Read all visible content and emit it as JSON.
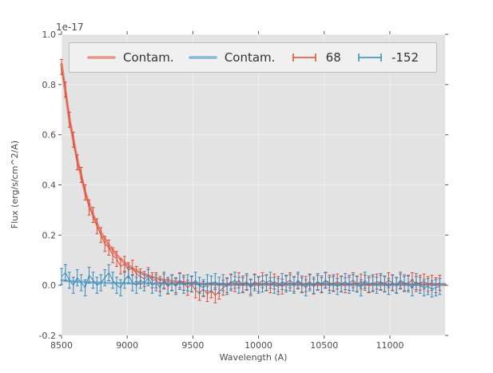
{
  "figure": {
    "background": "#ffffff",
    "axes_background": "#e3e3e3",
    "tick_color": "#555555",
    "label_color": "#4d4d4d",
    "offset_text": "1e-17"
  },
  "legend": {
    "entries": [
      {
        "label": "Contam.",
        "type": "line",
        "color": "rgba(226,74,51,0.55)"
      },
      {
        "label": "Contam.",
        "type": "line",
        "color": "rgba(52,138,189,0.55)"
      },
      {
        "label": "68",
        "type": "errorbar",
        "color": "#e24a33"
      },
      {
        "label": "-152",
        "type": "errorbar",
        "color": "#348abd"
      }
    ]
  },
  "chart_data": {
    "type": "line",
    "title": "",
    "xlabel": "Wavelength (A)",
    "ylabel": "Flux (erg/s/cm^2/A)",
    "y_scale_factor": "1e-17",
    "xlim": [
      8500,
      11420
    ],
    "ylim": [
      -0.2,
      1.0
    ],
    "xticks": [
      8500,
      9000,
      9500,
      10000,
      10500,
      11000
    ],
    "yticks": [
      -0.2,
      0.0,
      0.2,
      0.4,
      0.6,
      0.8,
      1.0
    ],
    "grid": true,
    "legend_position": "upper center",
    "series": [
      {
        "name": "Contam.",
        "style": "line",
        "color": "rgba(226,74,51,0.55)",
        "width": 3.5,
        "x": [
          8500,
          8560,
          8620,
          8680,
          8740,
          8800,
          8860,
          8920,
          8980,
          9040,
          9100,
          9160,
          9220,
          9280,
          9340,
          9400,
          9460,
          9520,
          9580,
          9640,
          9700,
          9800,
          10000,
          10200,
          10400,
          10600,
          10800,
          11000,
          11200,
          11420
        ],
        "y": [
          0.88,
          0.66,
          0.5,
          0.37,
          0.28,
          0.21,
          0.16,
          0.12,
          0.09,
          0.067,
          0.05,
          0.038,
          0.028,
          0.021,
          0.016,
          0.012,
          0.009,
          0.007,
          0.005,
          0.004,
          0.003,
          0.002,
          0.002,
          0.002,
          0.002,
          0.002,
          0.002,
          0.002,
          0.002,
          0.002
        ]
      },
      {
        "name": "Contam.",
        "style": "line",
        "color": "rgba(52,138,189,0.55)",
        "width": 3,
        "x": [
          8500,
          8600,
          8700,
          8800,
          9000,
          9500,
          10000,
          10500,
          11000,
          11420
        ],
        "y": [
          0.02,
          0.015,
          0.012,
          0.01,
          0.008,
          0.006,
          0.005,
          0.005,
          0.004,
          0.004
        ]
      },
      {
        "name": "68",
        "style": "errorbar",
        "color": "#e24a33",
        "x_start": 8500,
        "x_step": 30,
        "yerr": 0.03,
        "y": [
          0.87,
          0.78,
          0.66,
          0.58,
          0.49,
          0.44,
          0.37,
          0.31,
          0.28,
          0.235,
          0.2,
          0.165,
          0.15,
          0.12,
          0.105,
          0.075,
          0.085,
          0.06,
          0.07,
          0.045,
          0.035,
          0.025,
          0.04,
          0.02,
          0.02,
          0.005,
          0.015,
          -0.005,
          0.01,
          0.0,
          0.02,
          0.01,
          -0.01,
          0.005,
          -0.02,
          -0.03,
          -0.015,
          -0.035,
          -0.02,
          -0.04,
          -0.025,
          -0.01,
          0.0,
          0.015,
          0.005,
          0.02,
          0.0,
          0.01,
          -0.005,
          0.015,
          0.005,
          0.02,
          0.01,
          0.0,
          0.015,
          0.005,
          -0.005,
          0.01,
          0.02,
          0.005,
          0.015,
          0.0,
          0.005,
          0.015,
          -0.005,
          0.01,
          0.0,
          0.02,
          0.01,
          0.005,
          0.015,
          0.005,
          0.0,
          0.01,
          0.02,
          0.005,
          0.015,
          0.01,
          0.0,
          0.005,
          0.015,
          0.01,
          0.005,
          0.02,
          0.01,
          0.0,
          0.015,
          0.005,
          0.01,
          0.02,
          0.005,
          0.01,
          0.015,
          0.005,
          0.01,
          0.0,
          0.01
        ]
      },
      {
        "name": "-152",
        "style": "errorbar",
        "color": "#348abd",
        "x_start": 8500,
        "x_step": 30,
        "yerr": 0.032,
        "y": [
          0.035,
          0.05,
          0.02,
          0.0,
          0.03,
          0.01,
          -0.01,
          0.04,
          0.02,
          0.0,
          0.01,
          0.03,
          0.05,
          0.02,
          0.0,
          -0.01,
          0.02,
          0.04,
          0.01,
          0.0,
          0.02,
          0.01,
          0.03,
          0.0,
          0.01,
          -0.01,
          0.02,
          0.0,
          0.01,
          -0.005,
          0.015,
          0.0,
          0.01,
          0.005,
          0.02,
          0.0,
          -0.01,
          0.01,
          0.005,
          0.015,
          0.0,
          0.01,
          -0.005,
          0.01,
          0.02,
          0.0,
          0.005,
          0.015,
          -0.01,
          0.01,
          0.0,
          0.005,
          0.01,
          0.02,
          0.0,
          -0.005,
          0.015,
          0.005,
          0.01,
          0.0,
          0.02,
          0.005,
          -0.01,
          0.01,
          0.0,
          0.015,
          0.005,
          0.02,
          0.0,
          0.01,
          -0.005,
          0.005,
          0.015,
          0.0,
          0.01,
          0.005,
          -0.01,
          0.02,
          0.005,
          0.01,
          0.0,
          0.015,
          0.005,
          -0.005,
          0.01,
          0.0,
          0.02,
          0.01,
          0.005,
          -0.01,
          0.015,
          0.0,
          -0.01,
          -0.005,
          -0.015,
          -0.01,
          -0.005
        ]
      }
    ]
  }
}
